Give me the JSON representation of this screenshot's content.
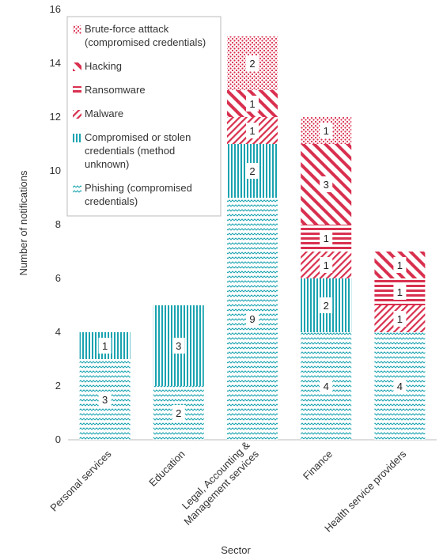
{
  "chart_data": {
    "type": "bar",
    "stacked": true,
    "xlabel": "Sector",
    "ylabel": "Number of notifications",
    "ylim": [
      0,
      16
    ],
    "yticks": [
      0,
      2,
      4,
      6,
      8,
      10,
      12,
      14,
      16
    ],
    "grid": false,
    "legend_position": "top-left",
    "categories": [
      "Personal services",
      "Education",
      "Legal, Accounting & Management services",
      "Finance",
      "Health service providers"
    ],
    "category_lines": [
      [
        "Personal services"
      ],
      [
        "Education"
      ],
      [
        "Legal, Accounting &",
        "Management services"
      ],
      [
        "Finance"
      ],
      [
        "Health service providers"
      ]
    ],
    "series": [
      {
        "name": "Phishing (compromised credentials)",
        "legend_lines": [
          "Phishing (compromised",
          "credentials)"
        ],
        "values": [
          3,
          2,
          9,
          4,
          4
        ],
        "color": "#1aa3b0",
        "pattern": "wave"
      },
      {
        "name": "Compromised or stolen credentials (method unknown)",
        "legend_lines": [
          "Compromised or stolen",
          "credentials (method",
          "unknown)"
        ],
        "values": [
          1,
          3,
          2,
          2,
          0
        ],
        "color": "#1aa3b0",
        "pattern": "vlines"
      },
      {
        "name": "Malware",
        "legend_lines": [
          "Malware"
        ],
        "values": [
          0,
          0,
          1,
          1,
          1
        ],
        "color": "#d9304f",
        "pattern": "diag-back"
      },
      {
        "name": "Ransomware",
        "legend_lines": [
          "Ransomware"
        ],
        "values": [
          0,
          0,
          0,
          1,
          1
        ],
        "color": "#d9304f",
        "pattern": "hlines"
      },
      {
        "name": "Hacking",
        "legend_lines": [
          "Hacking"
        ],
        "values": [
          0,
          0,
          1,
          3,
          1
        ],
        "color": "#d9304f",
        "pattern": "diag-thick"
      },
      {
        "name": "Brute-force atttack (compromised credentials)",
        "legend_lines": [
          "Brute-force atttack",
          "(compromised credentials)"
        ],
        "values": [
          0,
          0,
          2,
          1,
          0
        ],
        "color": "#d9304f",
        "pattern": "dots"
      }
    ]
  }
}
